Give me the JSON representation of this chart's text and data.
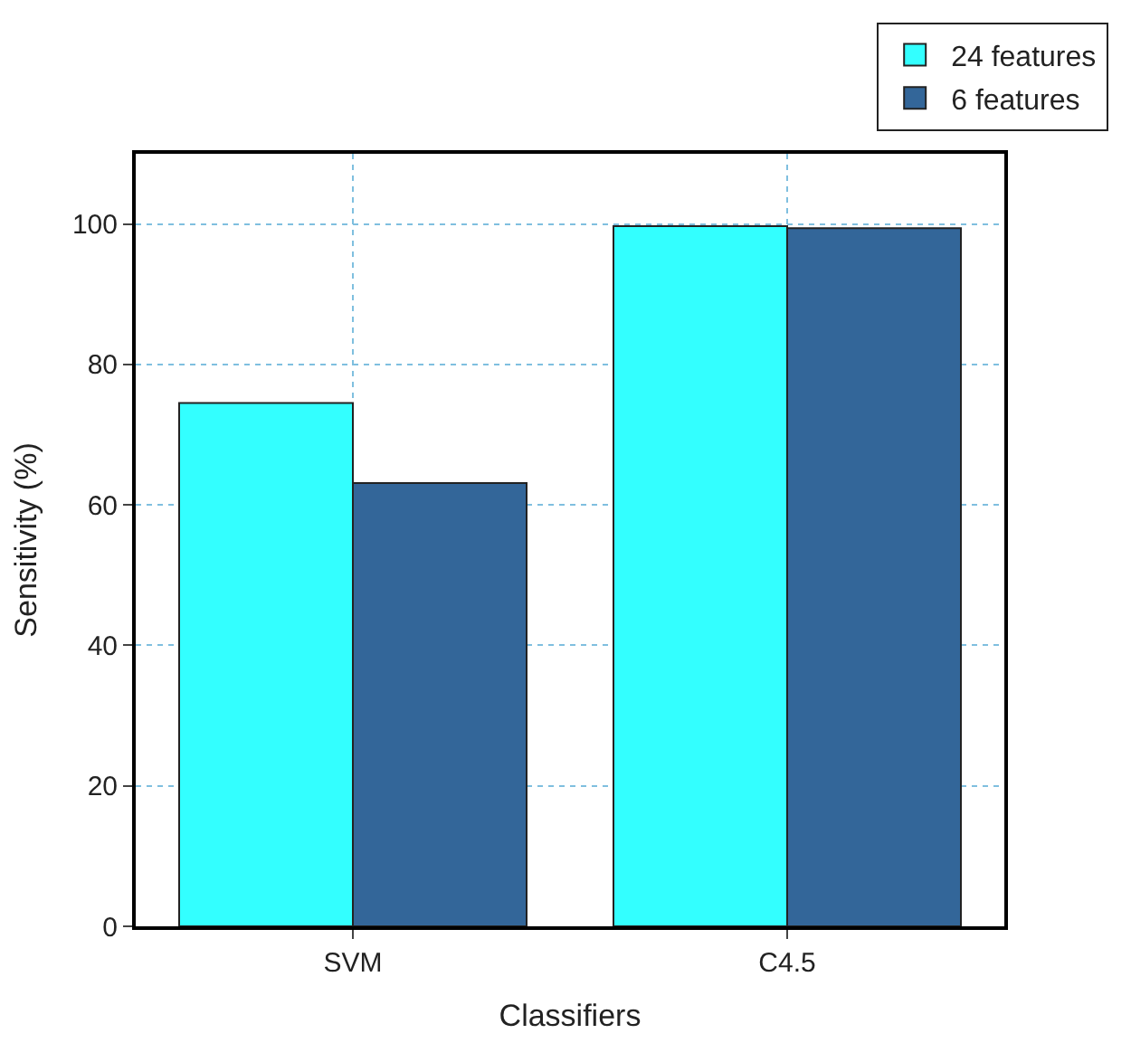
{
  "chart_data": {
    "type": "bar",
    "xlabel": "Classifiers",
    "ylabel": "Sensitivity (%)",
    "categories": [
      "SVM",
      "C4.5"
    ],
    "series": [
      {
        "name": "24 features",
        "color": "#33ffff",
        "values": [
          74.5,
          99.7
        ]
      },
      {
        "name": "6 features",
        "color": "#336699",
        "values": [
          63.1,
          99.4
        ]
      }
    ],
    "ylim": [
      0,
      110
    ],
    "yticks": [
      0,
      20,
      40,
      60,
      80,
      100
    ],
    "grid": true,
    "legend": "top right"
  }
}
